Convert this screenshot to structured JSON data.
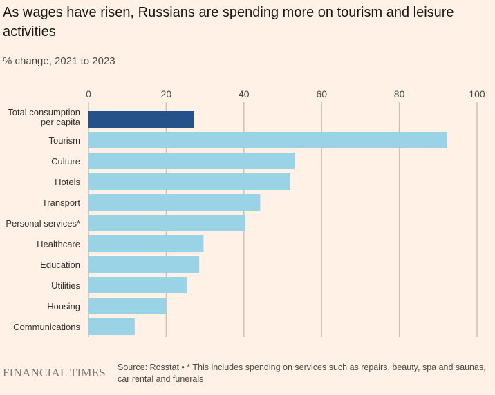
{
  "chart_data": {
    "type": "bar",
    "orientation": "horizontal",
    "title": "As wages have risen, Russians are spending more on tourism and leisure activities",
    "subtitle": "% change, 2021 to 2023",
    "categories": [
      "Total consumption per capita",
      "Tourism",
      "Culture",
      "Hotels",
      "Transport",
      "Personal services*",
      "Healthcare",
      "Education",
      "Utilities",
      "Housing",
      "Communications"
    ],
    "category_lines": [
      [
        "Total consumption",
        "per capita"
      ],
      [
        "Tourism"
      ],
      [
        "Culture"
      ],
      [
        "Hotels"
      ],
      [
        "Transport"
      ],
      [
        "Personal services*"
      ],
      [
        "Healthcare"
      ],
      [
        "Education"
      ],
      [
        "Utilities"
      ],
      [
        "Housing"
      ],
      [
        "Communications"
      ]
    ],
    "values": [
      27.2,
      92.3,
      53.1,
      51.9,
      44.2,
      40.4,
      29.6,
      28.5,
      25.4,
      20.0,
      11.9
    ],
    "highlight_index": 0,
    "colors": {
      "highlight": "#255288",
      "default": "#9ad3e5",
      "grid": "#ccc1b7"
    },
    "xlim": [
      0,
      100
    ],
    "xticks": [
      0,
      20,
      40,
      60,
      80,
      100
    ],
    "xlabel": "",
    "ylabel": "",
    "grid": true,
    "legend": "none"
  },
  "footer": {
    "brand": "FINANCIAL TIMES",
    "source": "Source: Rosstat • * This includes spending on services such as repairs, beauty, spa and saunas, car rental and funerals"
  }
}
